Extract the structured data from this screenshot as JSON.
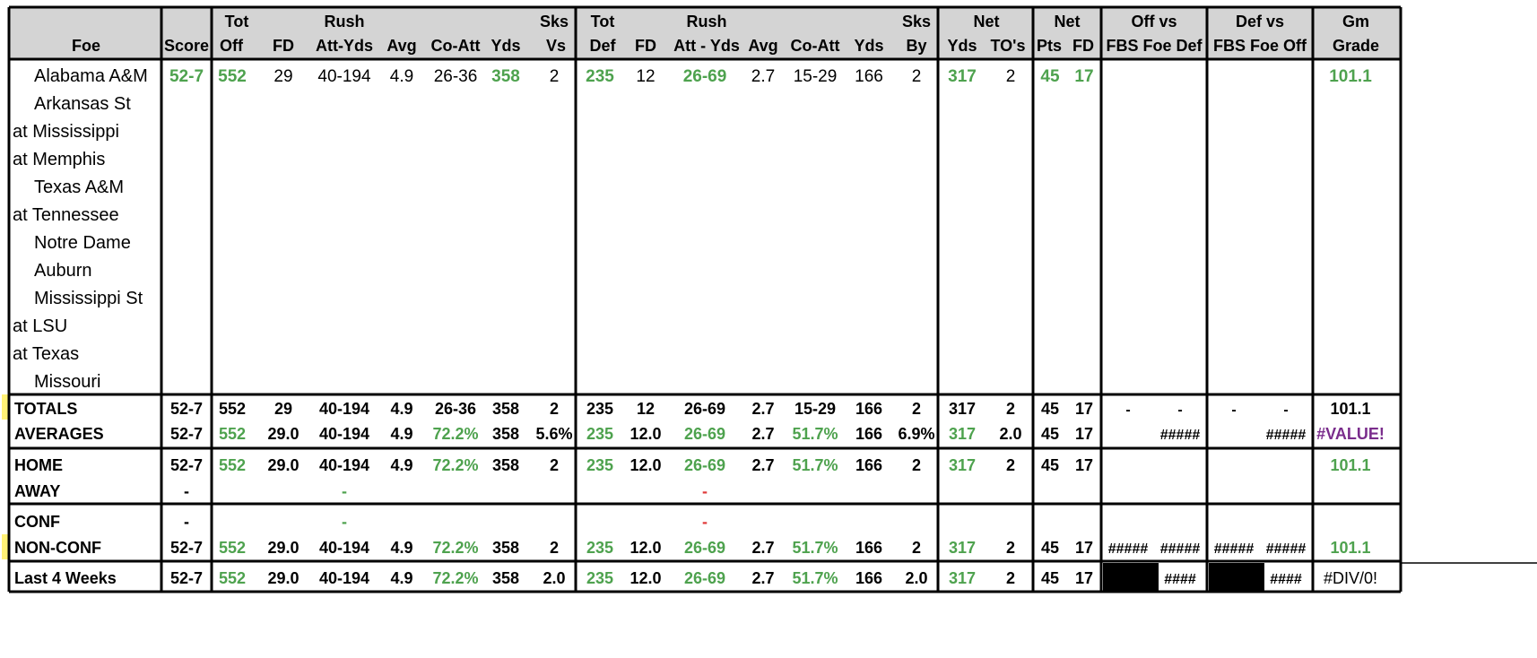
{
  "colors": {
    "green": "#4ea24e",
    "red": "#e03a3a",
    "purple": "#7a2d8c",
    "header_bg": "#d4d4d4",
    "yellow_marker": "#fff176",
    "black": "#000000"
  },
  "header": {
    "row1": {
      "tot_off": "Tot",
      "rush_off": "Rush",
      "sks_vs": "Sks",
      "tot_def": "Tot",
      "rush_def": "Rush",
      "sks_by": "Sks",
      "net_yds": "Net",
      "net_pts": "Net",
      "off_vs": "Off vs",
      "def_vs": "Def vs",
      "gm": "Gm"
    },
    "row2": {
      "foe": "Foe",
      "score": "Score",
      "off": "Off",
      "fd": "FD",
      "att_yds": "Att-Yds",
      "avg": "Avg",
      "co_att": "Co-Att",
      "yds": "Yds",
      "vs": "Vs",
      "def": "Def",
      "fd2": "FD",
      "att_yds2": "Att - Yds",
      "avg2": "Avg",
      "co_att2": "Co-Att",
      "yds2": "Yds",
      "by": "By",
      "net_yds": "Yds",
      "tos": "TO's",
      "pts": "Pts",
      "fd3": "FD",
      "fbs_foe_def": "FBS Foe Def",
      "fbs_foe_off": "FBS Foe Off",
      "grade": "Grade"
    }
  },
  "games": [
    {
      "foe": "Alabama A&M",
      "home": true,
      "score": "52-7",
      "tot_off": "552",
      "fd": "29",
      "rush_att_yds": "40-194",
      "avg": "4.9",
      "co_att": "26-36",
      "pass_yds": "358",
      "sks_vs": "2",
      "tot_def": "235",
      "fd_def": "12",
      "rush_def": "26-69",
      "avg_def": "2.7",
      "co_att_def": "15-29",
      "pass_yds_def": "166",
      "sks_by": "2",
      "net_yds": "317",
      "net_tos": "2",
      "net_pts": "45",
      "net_fd": "17",
      "grade": "101.1"
    },
    {
      "foe": "Arkansas St",
      "home": true
    },
    {
      "foe": "at Mississippi",
      "home": false
    },
    {
      "foe": "at Memphis",
      "home": false
    },
    {
      "foe": "Texas A&M",
      "home": true
    },
    {
      "foe": "at Tennessee",
      "home": false
    },
    {
      "foe": "Notre Dame",
      "home": true
    },
    {
      "foe": "Auburn",
      "home": true
    },
    {
      "foe": "Mississippi St",
      "home": true
    },
    {
      "foe": "at LSU",
      "home": false
    },
    {
      "foe": "at Texas",
      "home": false
    },
    {
      "foe": "Missouri",
      "home": true
    }
  ],
  "summary": {
    "totals": {
      "label": "TOTALS",
      "score": "52-7",
      "tot_off": "552",
      "fd": "29",
      "rush": "40-194",
      "avg": "4.9",
      "co_att": "26-36",
      "yds": "358",
      "sks": "2",
      "tot_def": "235",
      "fd_def": "12",
      "rush_def": "26-69",
      "avg_def": "2.7",
      "co_att_def": "15-29",
      "yds_def": "166",
      "sks_by": "2",
      "net_yds": "317",
      "tos": "2",
      "pts": "45",
      "net_fd": "17",
      "off_a": "-",
      "off_b": "-",
      "def_a": "-",
      "def_b": "-",
      "grade": "101.1"
    },
    "averages": {
      "label": "AVERAGES",
      "score": "52-7",
      "tot_off": "552",
      "fd": "29.0",
      "rush": "40-194",
      "avg": "4.9",
      "co_att": "72.2%",
      "yds": "358",
      "sks": "5.6%",
      "tot_def": "235",
      "fd_def": "12.0",
      "rush_def": "26-69",
      "avg_def": "2.7",
      "co_att_def": "51.7%",
      "yds_def": "166",
      "sks_by": "6.9%",
      "net_yds": "317",
      "tos": "2.0",
      "pts": "45",
      "net_fd": "17",
      "off_b": "#####",
      "def_b": "#####",
      "grade": "#VALUE!"
    },
    "home": {
      "label": "HOME",
      "score": "52-7",
      "tot_off": "552",
      "fd": "29.0",
      "rush": "40-194",
      "avg": "4.9",
      "co_att": "72.2%",
      "yds": "358",
      "sks": "2",
      "tot_def": "235",
      "fd_def": "12.0",
      "rush_def": "26-69",
      "avg_def": "2.7",
      "co_att_def": "51.7%",
      "yds_def": "166",
      "sks_by": "2",
      "net_yds": "317",
      "tos": "2",
      "pts": "45",
      "net_fd": "17",
      "grade": "101.1"
    },
    "away": {
      "label": "AWAY",
      "score": "-",
      "rush": "-",
      "rush_def": "-"
    },
    "conf": {
      "label": "CONF",
      "score": "-",
      "rush": "-",
      "rush_def": "-"
    },
    "nonconf": {
      "label": "NON-CONF",
      "score": "52-7",
      "tot_off": "552",
      "fd": "29.0",
      "rush": "40-194",
      "avg": "4.9",
      "co_att": "72.2%",
      "yds": "358",
      "sks": "2",
      "tot_def": "235",
      "fd_def": "12.0",
      "rush_def": "26-69",
      "avg_def": "2.7",
      "co_att_def": "51.7%",
      "yds_def": "166",
      "sks_by": "2",
      "net_yds": "317",
      "tos": "2",
      "pts": "45",
      "net_fd": "17",
      "off_a": "#####",
      "off_b": "#####",
      "def_a": "#####",
      "def_b": "#####",
      "grade": "101.1"
    },
    "last4": {
      "label": "Last 4 Weeks",
      "score": "52-7",
      "tot_off": "552",
      "fd": "29.0",
      "rush": "40-194",
      "avg": "4.9",
      "co_att": "72.2%",
      "yds": "358",
      "sks": "2.0",
      "tot_def": "235",
      "fd_def": "12.0",
      "rush_def": "26-69",
      "avg_def": "2.7",
      "co_att_def": "51.7%",
      "yds_def": "166",
      "sks_by": "2.0",
      "net_yds": "317",
      "tos": "2",
      "pts": "45",
      "net_fd": "17",
      "off_b": "####",
      "def_b": "####",
      "grade": "#DIV/0!"
    }
  }
}
